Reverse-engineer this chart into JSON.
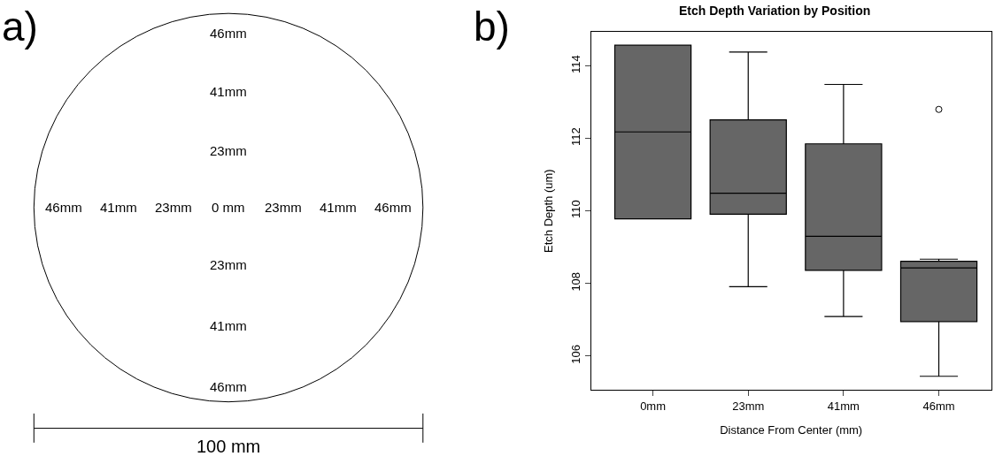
{
  "chart_data": [
    {
      "type": "other",
      "title": "a)",
      "annotations": [
        "46mm",
        "41mm",
        "23mm",
        "46mm",
        "41mm",
        "23mm",
        "0 mm",
        "23mm",
        "41mm",
        "46mm",
        "23mm",
        "41mm",
        "46mm",
        "100 mm"
      ]
    },
    {
      "type": "box",
      "title": "Etch Depth Variation by Position",
      "xlabel": "Distance From Center (mm)",
      "ylabel": "Etch Depth (um)",
      "annotations": [
        "b)"
      ],
      "categories": [
        "0mm",
        "23mm",
        "41mm",
        "46mm"
      ],
      "color": "#666666",
      "boxes": [
        {
          "low": 109.78,
          "q1": 109.78,
          "median": 112.18,
          "q3": 114.57,
          "high": 114.57
        },
        {
          "low": 107.91,
          "q1": 109.91,
          "median": 110.49,
          "q3": 112.51,
          "high": 114.38
        },
        {
          "low": 107.09,
          "q1": 108.36,
          "median": 109.3,
          "q3": 111.85,
          "high": 113.49
        },
        {
          "low": 105.44,
          "q1": 106.95,
          "median": 108.43,
          "q3": 108.61,
          "high": 108.67,
          "outliers": [
            112.8
          ]
        }
      ],
      "ylim": [
        105.06,
        114.94
      ],
      "yticks": [
        106,
        108,
        110,
        112,
        114
      ]
    }
  ]
}
